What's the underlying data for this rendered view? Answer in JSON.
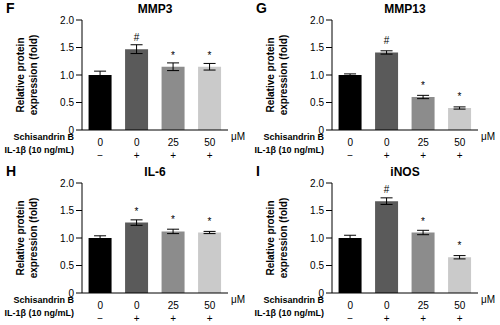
{
  "chart_data": [
    {
      "type": "bar",
      "panel": "F",
      "title": "MMP3",
      "y_label": "Relative protein expression (fold)",
      "x_rows": [
        {
          "name": "Schisandrin B",
          "labels": [
            "0",
            "0",
            "25",
            "50"
          ],
          "unit": "μM"
        },
        {
          "name": "IL-1β (10 ng/mL)",
          "labels": [
            "−",
            "+",
            "+",
            "+"
          ]
        }
      ],
      "values": [
        1.0,
        1.47,
        1.15,
        1.15
      ],
      "errors": [
        0.07,
        0.08,
        0.07,
        0.06
      ],
      "annotations": [
        null,
        "#",
        "*",
        "*"
      ],
      "colors": [
        "#000000",
        "#5a5a5a",
        "#8c8c8c",
        "#cacaca"
      ],
      "ylim": [
        0,
        2.0
      ],
      "yticks": [
        0,
        0.5,
        {
          "value": 1.0,
          "label": "1.0"
        },
        1.5,
        {
          "value": 2.0,
          "label": "2.0"
        }
      ]
    },
    {
      "type": "bar",
      "panel": "G",
      "title": "MMP13",
      "y_label": "Relative protein expression (fold)",
      "x_rows": [
        {
          "name": "Schisandrin B",
          "labels": [
            "0",
            "0",
            "25",
            "50"
          ],
          "unit": "μM"
        },
        {
          "name": "IL-1β (10 ng/mL)",
          "labels": [
            "−",
            "+",
            "+",
            "+"
          ]
        }
      ],
      "values": [
        1.0,
        1.41,
        0.6,
        0.4
      ],
      "errors": [
        0.02,
        0.03,
        0.03,
        0.02
      ],
      "annotations": [
        null,
        "#",
        "*",
        "*"
      ],
      "colors": [
        "#000000",
        "#5a5a5a",
        "#8c8c8c",
        "#cacaca"
      ],
      "ylim": [
        0,
        2.0
      ],
      "yticks": [
        0,
        0.5,
        {
          "value": 1.0,
          "label": "1.0"
        },
        1.5,
        {
          "value": 2.0,
          "label": "2.0"
        }
      ]
    },
    {
      "type": "bar",
      "panel": "H",
      "title": "IL-6",
      "y_label": "Relative protein expression (fold)",
      "x_rows": [
        {
          "name": "Schisandrin B",
          "labels": [
            "0",
            "0",
            "25",
            "50"
          ],
          "unit": "μM"
        },
        {
          "name": "IL-1β (10 ng/mL)",
          "labels": [
            "−",
            "+",
            "+",
            "+"
          ]
        }
      ],
      "values": [
        1.0,
        1.28,
        1.12,
        1.1
      ],
      "errors": [
        0.04,
        0.05,
        0.04,
        0.02
      ],
      "annotations": [
        null,
        "*",
        "*",
        "*"
      ],
      "colors": [
        "#000000",
        "#5a5a5a",
        "#8c8c8c",
        "#cacaca"
      ],
      "ylim": [
        0,
        2.0
      ],
      "yticks": [
        0,
        0.5,
        {
          "value": 1.0,
          "label": "1.0"
        },
        1.5,
        {
          "value": 2.0,
          "label": "2.0"
        }
      ]
    },
    {
      "type": "bar",
      "panel": "I",
      "title": "iNOS",
      "y_label": "Relative protein expression (fold)",
      "x_rows": [
        {
          "name": "Schisandrin B",
          "labels": [
            "0",
            "0",
            "25",
            "50"
          ],
          "unit": "μM"
        },
        {
          "name": "IL-1β (10 ng/mL)",
          "labels": [
            "−",
            "+",
            "+",
            "+"
          ]
        }
      ],
      "values": [
        1.0,
        1.67,
        1.1,
        0.65
      ],
      "errors": [
        0.05,
        0.06,
        0.04,
        0.03
      ],
      "annotations": [
        null,
        "#",
        "*",
        "*"
      ],
      "colors": [
        "#000000",
        "#5a5a5a",
        "#8c8c8c",
        "#cacaca"
      ],
      "ylim": [
        0,
        2.0
      ],
      "yticks": [
        0,
        0.5,
        {
          "value": 1.0,
          "label": "1.0"
        },
        1.5,
        {
          "value": 2.0,
          "label": "2.0"
        }
      ]
    }
  ]
}
